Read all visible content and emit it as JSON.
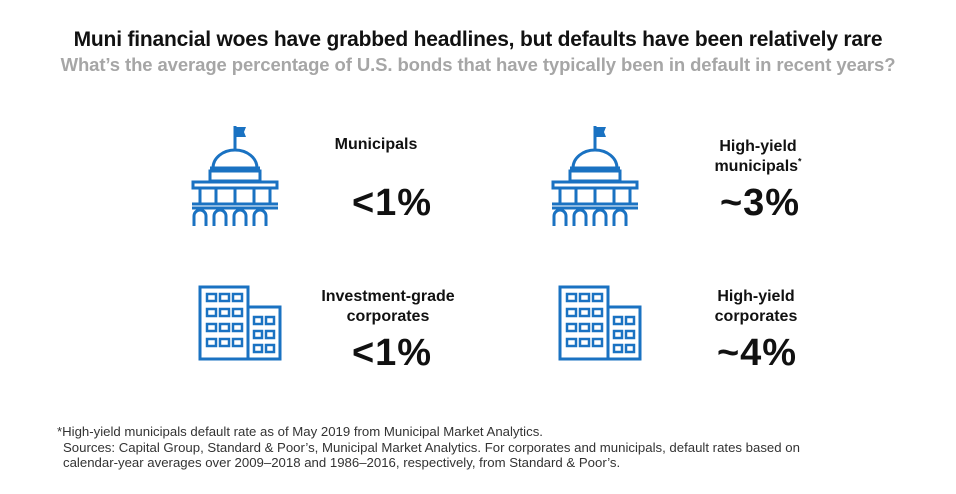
{
  "header": {
    "title": "Muni financial woes have grabbed headlines, but defaults have been relatively rare",
    "subtitle": "What’s the average percentage of U.S. bonds that have typically been in default in recent years?"
  },
  "colors": {
    "icon_blue": "#1a72c2"
  },
  "items": [
    {
      "label": "Municipals",
      "value": "<1%",
      "icon": "capitol-building-icon"
    },
    {
      "label": "High-yield municipals",
      "label_line1": "High-yield",
      "label_line2": "municipals",
      "footnote_mark": "*",
      "value": "~3%",
      "icon": "capitol-building-icon"
    },
    {
      "label": "Investment-grade corporates",
      "label_line1": "Investment-grade",
      "label_line2": "corporates",
      "value": "<1%",
      "icon": "office-buildings-icon"
    },
    {
      "label": "High-yield corporates",
      "label_line1": "High-yield",
      "label_line2": "corporates",
      "value": "~4%",
      "icon": "office-buildings-icon"
    }
  ],
  "footnotes": {
    "note": "*High-yield municipals default rate as of May 2019 from Municipal Market Analytics.",
    "sources_line1": "Sources: Capital Group, Standard & Poor’s, Municipal Market Analytics. For corporates and municipals, default rates based on",
    "sources_line2": "calendar-year averages over 2009–2018 and 1986–2016, respectively, from Standard & Poor’s."
  }
}
